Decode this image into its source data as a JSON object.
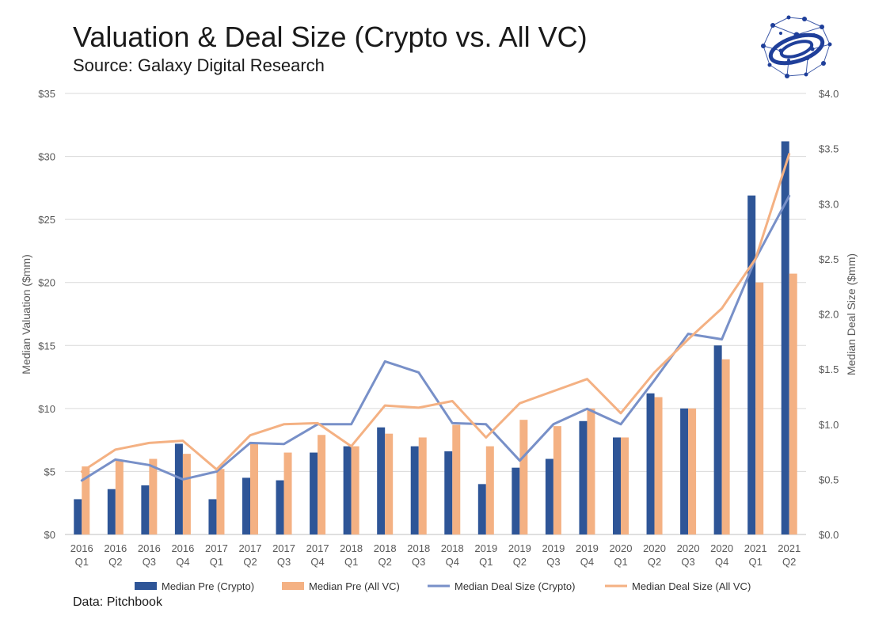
{
  "chart_data": {
    "type": "bar",
    "title": "Valuation & Deal Size (Crypto vs. All VC)",
    "subtitle": "Source: Galaxy Digital Research",
    "footnote": "Data: Pitchbook",
    "ylabel": "Median Valuation ($mm)",
    "y2label": "Median Deal Size ($mm)",
    "ylim": [
      0,
      35
    ],
    "y2lim": [
      0,
      4
    ],
    "yticks": [
      "$0",
      "$5",
      "$10",
      "$15",
      "$20",
      "$25",
      "$30",
      "$35"
    ],
    "y2ticks": [
      "$0.0",
      "$0.5",
      "$1.0",
      "$1.5",
      "$2.0",
      "$2.5",
      "$3.0",
      "$3.5",
      "$4.0"
    ],
    "grid": true,
    "legend_position": "bottom",
    "categories": [
      [
        "2016",
        "Q1"
      ],
      [
        "2016",
        "Q2"
      ],
      [
        "2016",
        "Q3"
      ],
      [
        "2016",
        "Q4"
      ],
      [
        "2017",
        "Q1"
      ],
      [
        "2017",
        "Q2"
      ],
      [
        "2017",
        "Q3"
      ],
      [
        "2017",
        "Q4"
      ],
      [
        "2018",
        "Q1"
      ],
      [
        "2018",
        "Q2"
      ],
      [
        "2018",
        "Q3"
      ],
      [
        "2018",
        "Q4"
      ],
      [
        "2019",
        "Q1"
      ],
      [
        "2019",
        "Q2"
      ],
      [
        "2019",
        "Q3"
      ],
      [
        "2019",
        "Q4"
      ],
      [
        "2020",
        "Q1"
      ],
      [
        "2020",
        "Q2"
      ],
      [
        "2020",
        "Q3"
      ],
      [
        "2020",
        "Q4"
      ],
      [
        "2021",
        "Q1"
      ],
      [
        "2021",
        "Q2"
      ]
    ],
    "series": [
      {
        "name": "Median Pre (Crypto)",
        "type": "bar",
        "axis": "left",
        "color": "#2e5597",
        "values": [
          2.8,
          3.6,
          3.9,
          7.2,
          2.8,
          4.5,
          4.3,
          6.5,
          7.0,
          8.5,
          7.0,
          6.6,
          4.0,
          5.3,
          6.0,
          9.0,
          7.7,
          11.2,
          10.0,
          15.0,
          26.9,
          31.2
        ]
      },
      {
        "name": "Median Pre (All VC)",
        "type": "bar",
        "axis": "left",
        "color": "#f4b183",
        "values": [
          5.4,
          5.9,
          6.0,
          6.4,
          5.2,
          7.2,
          6.5,
          7.9,
          7.0,
          8.0,
          7.7,
          8.7,
          7.0,
          9.1,
          8.6,
          10.0,
          7.7,
          10.9,
          10.0,
          13.9,
          20.0,
          20.7
        ]
      },
      {
        "name": "Median Deal Size (Crypto)",
        "type": "line",
        "axis": "right",
        "color": "#7890c8",
        "values": [
          0.49,
          0.68,
          0.63,
          0.5,
          0.57,
          0.83,
          0.82,
          1.0,
          1.0,
          1.57,
          1.47,
          1.01,
          1.0,
          0.67,
          1.0,
          1.14,
          1.0,
          1.4,
          1.82,
          1.77,
          2.5,
          3.07
        ]
      },
      {
        "name": "Median Deal Size (All VC)",
        "type": "line",
        "axis": "right",
        "color": "#f4b183",
        "values": [
          0.57,
          0.77,
          0.83,
          0.85,
          0.59,
          0.9,
          1.0,
          1.01,
          0.8,
          1.17,
          1.15,
          1.21,
          0.88,
          1.19,
          1.3,
          1.41,
          1.1,
          1.47,
          1.77,
          2.05,
          2.5,
          3.45
        ]
      }
    ]
  },
  "logo": {
    "icon": "network-globe-logo",
    "color": "#1f3f9a"
  }
}
